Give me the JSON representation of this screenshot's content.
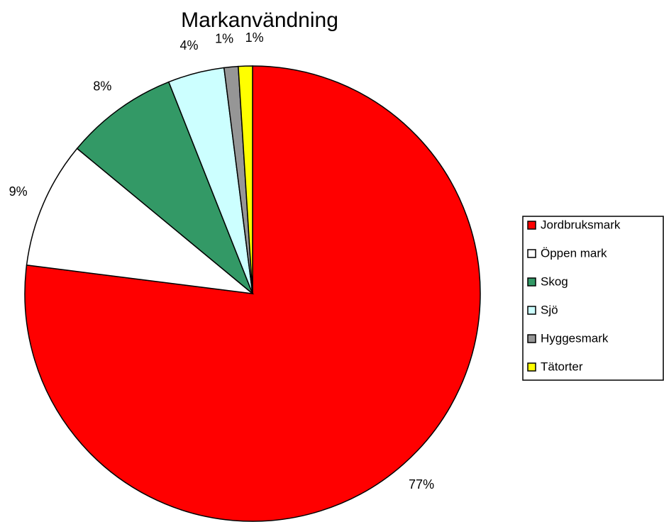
{
  "chart_data": {
    "type": "pie",
    "title": "Markanvändning",
    "categories": [
      "Jordbruksmark",
      "Öppen mark",
      "Skog",
      "Sjö",
      "Hyggesmark",
      "Tätorter"
    ],
    "values": [
      77,
      9,
      8,
      4,
      1,
      1
    ],
    "value_labels": [
      "77%",
      "9%",
      "8%",
      "4%",
      "1%",
      "1%"
    ],
    "colors": [
      "#ff0000",
      "#ffffff",
      "#339966",
      "#ccffff",
      "#969696",
      "#ffff00"
    ],
    "legend": "right"
  }
}
